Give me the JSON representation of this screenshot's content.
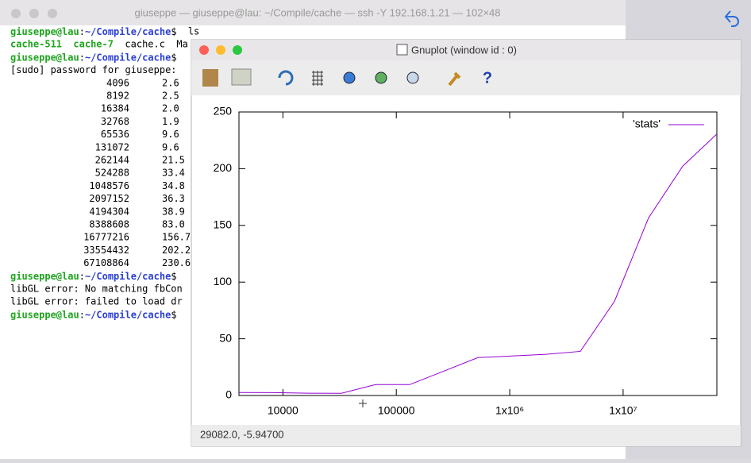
{
  "terminal": {
    "title": "giuseppe — giuseppe@lau: ~/Compile/cache — ssh -Y 192.168.1.21 — 102×48",
    "prompt": {
      "user": "giuseppe@lau",
      "sep": ":",
      "path": "~/Compile/cache",
      "end": "$"
    },
    "command": "ls",
    "ls_output": [
      "cache-511",
      "cache-7",
      "cache.c",
      "Ma"
    ],
    "sudo_prompt": "[sudo] password for giuseppe:",
    "size_values": [
      "2.6",
      "2.5",
      "2.0",
      "1.9",
      "9.6",
      "9.6",
      "21.5",
      "33.4",
      "34.8",
      "36.3",
      "38.9",
      "83.0",
      "156.7",
      "202.2",
      "230.6"
    ],
    "errors": [
      "libGL error: No matching fbCon",
      "libGL error: failed to load dr"
    ]
  },
  "gnuplot": {
    "title": "Gnuplot (window id : 0)",
    "status": "29082.0, -5.94700"
  },
  "chart_data": {
    "type": "line",
    "x": [
      4096,
      8192,
      16384,
      32768,
      65536,
      131072,
      262144,
      524288,
      1048576,
      2097152,
      4194304,
      8388608,
      16777216,
      33554432,
      67108864
    ],
    "series": [
      {
        "name": "'stats'",
        "color": "#9400d3",
        "values": [
          2.6,
          2.5,
          2.0,
          1.9,
          9.6,
          9.6,
          21.5,
          33.4,
          34.8,
          36.3,
          38.9,
          83.0,
          156.7,
          202.2,
          230.6
        ]
      }
    ],
    "xlim": [
      4096,
      67108864
    ],
    "xticks": [
      10000,
      100000,
      {
        "value": 1000000,
        "label": "1x10⁶"
      },
      {
        "value": 10000000,
        "label": "1x10⁷"
      }
    ],
    "xscale": "log",
    "ylim": [
      0,
      250
    ],
    "yticks": [
      0,
      50,
      100,
      150,
      200,
      250
    ],
    "legend": "top-right"
  }
}
